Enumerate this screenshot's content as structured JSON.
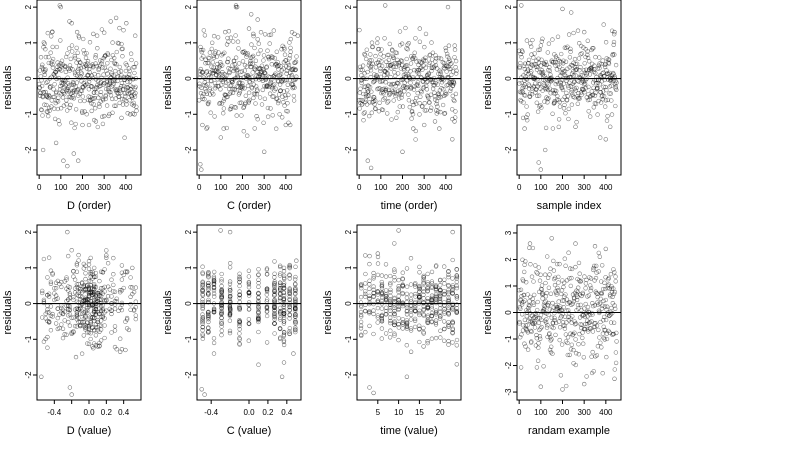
{
  "chart_data": [
    {
      "type": "scatter",
      "xlabel": "D (order)",
      "ylabel": "residuals",
      "xlim": [
        -10,
        470
      ],
      "ylim": [
        -2.7,
        2.2
      ],
      "xticks": [
        0,
        100,
        200,
        300,
        400
      ],
      "yticks": [
        -2,
        -1,
        0,
        1,
        2
      ],
      "hline": 0,
      "seed": 11,
      "pattern": "order",
      "n": 450,
      "x": [
        18,
        60,
        78,
        95,
        100,
        112,
        130,
        140,
        150,
        160,
        175,
        180,
        200,
        230,
        250,
        262,
        300,
        330,
        355,
        380,
        402,
        420,
        440
      ],
      "y": [
        -2.0,
        1.3,
        -1.8,
        2.05,
        2.0,
        -2.3,
        -2.45,
        1.6,
        1.55,
        -2.1,
        1.3,
        -2.3,
        -1.3,
        -1.3,
        1.25,
        -1.2,
        -1.05,
        1.6,
        1.7,
        -1.1,
        1.55,
        -1.0,
        -1.0
      ]
    },
    {
      "type": "scatter",
      "xlabel": "C (order)",
      "ylabel": "residuals",
      "xlim": [
        -10,
        470
      ],
      "ylim": [
        -2.7,
        2.2
      ],
      "xticks": [
        0,
        100,
        200,
        300,
        400
      ],
      "yticks": [
        -2,
        -1,
        0,
        1,
        2
      ],
      "hline": 0,
      "seed": 23,
      "pattern": "order",
      "n": 450,
      "x": [
        5,
        10,
        15,
        100,
        120,
        170,
        250,
        270,
        300,
        400,
        420,
        440,
        455
      ],
      "y": [
        -2.4,
        -2.55,
        -1.3,
        -1.65,
        1.3,
        2.0,
        1.25,
        1.1,
        -2.05,
        -1.3,
        -1.3,
        1.25,
        1.2
      ],
      "extra_x": [
        170,
        175,
        230,
        240,
        270
      ],
      "extra_y": [
        2.05,
        2.0,
        1.4,
        1.8,
        1.65
      ]
    },
    {
      "type": "scatter",
      "xlabel": "time (order)",
      "ylabel": "residuals",
      "xlim": [
        -10,
        470
      ],
      "ylim": [
        -2.7,
        2.2
      ],
      "xticks": [
        0,
        100,
        200,
        300,
        400
      ],
      "yticks": [
        -2,
        -1,
        0,
        1,
        2
      ],
      "hline": 0,
      "seed": 37,
      "pattern": "order",
      "n": 450,
      "x": [
        40,
        55,
        120,
        200,
        250,
        280,
        300,
        350,
        370,
        410,
        430,
        440
      ],
      "y": [
        -2.3,
        -2.5,
        2.05,
        -2.05,
        -1.4,
        1.4,
        -1.3,
        -1.2,
        -1.4,
        2.0,
        -1.7,
        -1.2
      ]
    },
    {
      "type": "scatter",
      "xlabel": "sample index",
      "ylabel": "residuals",
      "xlim": [
        -10,
        470
      ],
      "ylim": [
        -2.7,
        2.2
      ],
      "xticks": [
        0,
        100,
        200,
        300,
        400
      ],
      "yticks": [
        -2,
        -1,
        0,
        1,
        2
      ],
      "hline": 0,
      "seed": 53,
      "pattern": "order",
      "n": 450,
      "x": [
        10,
        25,
        90,
        100,
        120,
        200,
        240,
        260,
        300,
        400,
        420,
        440
      ],
      "y": [
        2.05,
        -1.4,
        -2.35,
        -2.55,
        -2.0,
        1.95,
        1.85,
        -1.35,
        1.3,
        -1.7,
        -1.35,
        1.3
      ]
    },
    {
      "type": "scatter",
      "xlabel": "D (value)",
      "ylabel": "residuals",
      "xlim": [
        -0.6,
        0.6
      ],
      "ylim": [
        -2.7,
        2.2
      ],
      "xticks": [
        -0.4,
        -0.2,
        0.0,
        0.2,
        0.4
      ],
      "xticklabels": [
        "-0.4",
        "",
        "0.0",
        "0.2",
        "0.4"
      ],
      "yticks": [
        -2,
        -1,
        0,
        1,
        2
      ],
      "hline": 0,
      "seed": 67,
      "pattern": "dvalue",
      "n": 450,
      "x": [
        -0.55,
        -0.25,
        -0.22,
        -0.2,
        -0.15,
        0.05,
        0.1,
        0.2,
        0.42,
        0.5
      ],
      "y": [
        -2.05,
        2.0,
        -2.35,
        -2.55,
        -1.5,
        -1.25,
        -1.2,
        1.35,
        -1.3,
        1.0
      ]
    },
    {
      "type": "scatter",
      "xlabel": "C (value)",
      "ylabel": "residuals",
      "xlim": [
        -0.55,
        0.55
      ],
      "ylim": [
        -2.7,
        2.2
      ],
      "xticks": [
        -0.4,
        0.0,
        0.2,
        0.4
      ],
      "xticklabels": [
        "-0.4",
        "0.0",
        "0.2",
        "0.4"
      ],
      "yticks": [
        -2,
        -1,
        0,
        1,
        2
      ],
      "hline": 0,
      "seed": 79,
      "pattern": "cvalue",
      "n": 450,
      "columns": [
        -0.49,
        -0.43,
        -0.37,
        -0.29,
        -0.2,
        -0.1,
        0.0,
        0.1,
        0.19,
        0.27,
        0.33,
        0.37,
        0.43,
        0.49
      ],
      "x": [
        -0.5,
        -0.47,
        -0.3,
        -0.2,
        0.35,
        0.37,
        0.47,
        0.5
      ],
      "y": [
        -2.4,
        -2.55,
        2.05,
        2.0,
        -2.05,
        -1.65,
        -1.4,
        1.2
      ]
    },
    {
      "type": "scatter",
      "xlabel": "time (value)",
      "ylabel": "residuals",
      "xlim": [
        0,
        25
      ],
      "ylim": [
        -2.7,
        2.2
      ],
      "xticks": [
        5,
        10,
        15,
        20
      ],
      "yticks": [
        -2,
        -1,
        0,
        1,
        2
      ],
      "hline": 0,
      "seed": 97,
      "pattern": "tvalue",
      "n": 450,
      "columns": [
        1,
        2,
        3,
        4,
        5,
        6,
        7,
        8,
        9,
        10,
        11,
        12,
        13,
        14,
        15,
        16,
        17,
        18,
        19,
        20,
        21,
        22,
        23,
        24
      ],
      "x": [
        3,
        4,
        5,
        10,
        12,
        13,
        16,
        22,
        23,
        24
      ],
      "y": [
        -2.35,
        -2.5,
        1.4,
        2.05,
        -2.05,
        -1.35,
        -1.2,
        -1.15,
        2.0,
        -1.7
      ]
    },
    {
      "type": "scatter",
      "xlabel": "randam example",
      "ylabel": "residuals",
      "xlim": [
        -10,
        470
      ],
      "ylim": [
        -3.3,
        3.3
      ],
      "xticks": [
        0,
        100,
        200,
        300,
        400
      ],
      "yticks": [
        -3,
        -2,
        -1,
        0,
        1,
        2,
        3
      ],
      "hline": 0,
      "seed": 131,
      "pattern": "random",
      "n": 450,
      "x": [
        50,
        100,
        150,
        200,
        260,
        300,
        350,
        400,
        440
      ],
      "y": [
        2.6,
        -2.8,
        2.8,
        -2.9,
        2.6,
        -2.7,
        2.5,
        2.4,
        -2.5
      ]
    }
  ]
}
